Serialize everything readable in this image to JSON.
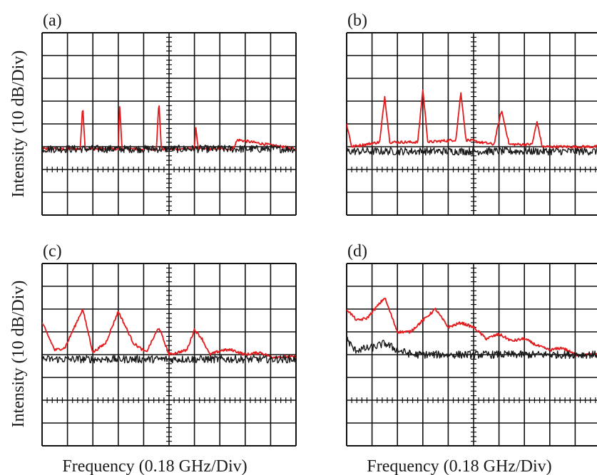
{
  "figure": {
    "ylabel": "Intensity (10 dB/Div)",
    "xlabel": "Frequency (0.18 GHz/Div)"
  },
  "colors": {
    "red_trace": "#e41a1c",
    "black_trace": "#1a1a1a",
    "grid": "#111111"
  },
  "chart_data": [
    {
      "type": "line",
      "panel_label": "(a)",
      "grid": true,
      "x_divisions": 10,
      "y_divisions": 8,
      "xlabel": "",
      "ylabel": "Intensity (10 dB/Div)",
      "series": [
        {
          "color": "#e41a1c",
          "x": [
            0.0,
            1.5,
            1.6,
            1.7,
            3.0,
            3.05,
            3.15,
            4.5,
            4.6,
            4.7,
            6.0,
            6.05,
            6.15,
            7.5,
            7.7,
            10.0
          ],
          "y": [
            2.9,
            2.9,
            4.8,
            2.9,
            2.9,
            4.9,
            2.9,
            2.9,
            5.0,
            2.9,
            2.9,
            3.9,
            2.9,
            2.9,
            3.3,
            2.9
          ]
        },
        {
          "color": "#1a1a1a",
          "x": [
            0.0,
            10.0
          ],
          "y": [
            2.9,
            2.9
          ]
        }
      ]
    },
    {
      "type": "line",
      "panel_label": "(b)",
      "grid": true,
      "x_divisions": 10,
      "y_divisions": 8,
      "xlabel": "",
      "ylabel": "",
      "series": [
        {
          "color": "#e41a1c",
          "x": [
            0.0,
            0.2,
            1.3,
            1.5,
            1.7,
            2.8,
            3.0,
            3.2,
            4.3,
            4.5,
            4.7,
            5.8,
            6.1,
            6.4,
            7.3,
            7.5,
            7.7,
            10.0
          ],
          "y": [
            4.0,
            3.0,
            3.2,
            5.2,
            3.2,
            3.2,
            5.5,
            3.2,
            3.3,
            5.4,
            3.3,
            3.1,
            4.6,
            3.1,
            3.1,
            4.1,
            3.0,
            3.0
          ]
        },
        {
          "color": "#1a1a1a",
          "x": [
            0.0,
            10.0
          ],
          "y": [
            2.8,
            2.8
          ]
        }
      ]
    },
    {
      "type": "line",
      "panel_label": "(c)",
      "grid": true,
      "x_divisions": 10,
      "y_divisions": 8,
      "xlabel": "Frequency (0.18 GHz/Div)",
      "ylabel": "Intensity (10 dB/Div)",
      "series": [
        {
          "color": "#e41a1c",
          "x": [
            0.0,
            0.5,
            0.9,
            1.6,
            2.0,
            2.5,
            3.0,
            3.6,
            4.1,
            4.6,
            5.0,
            5.7,
            6.0,
            6.3,
            6.6,
            7.1,
            7.5,
            8.0,
            8.6,
            9.0,
            10.0
          ],
          "y": [
            5.4,
            4.2,
            4.3,
            6.0,
            4.1,
            4.5,
            5.9,
            4.5,
            4.1,
            5.2,
            4.0,
            4.2,
            5.1,
            4.7,
            4.0,
            4.2,
            4.2,
            4.0,
            4.1,
            3.9,
            3.9
          ]
        },
        {
          "color": "#1a1a1a",
          "x": [
            0.0,
            10.0
          ],
          "y": [
            3.8,
            3.8
          ]
        }
      ]
    },
    {
      "type": "line",
      "panel_label": "(d)",
      "grid": true,
      "x_divisions": 10,
      "y_divisions": 8,
      "xlabel": "Frequency (0.18 GHz/Div)",
      "ylabel": "",
      "series": [
        {
          "color": "#e41a1c",
          "x": [
            0.0,
            0.4,
            0.8,
            1.5,
            2.0,
            2.5,
            3.0,
            3.5,
            4.0,
            4.5,
            5.0,
            5.5,
            6.0,
            6.5,
            7.0,
            7.5,
            8.0,
            8.5,
            9.0,
            10.0
          ],
          "y": [
            6.0,
            5.5,
            5.6,
            6.5,
            5.0,
            5.0,
            5.5,
            6.0,
            5.2,
            5.4,
            5.2,
            4.7,
            4.9,
            4.6,
            4.7,
            4.4,
            4.2,
            4.3,
            4.0,
            4.0
          ]
        },
        {
          "color": "#1a1a1a",
          "x": [
            0.0,
            0.3,
            1.0,
            1.5,
            2.0,
            2.6,
            10.0
          ],
          "y": [
            4.7,
            4.2,
            4.3,
            4.5,
            4.2,
            4.0,
            4.0
          ]
        }
      ]
    }
  ]
}
